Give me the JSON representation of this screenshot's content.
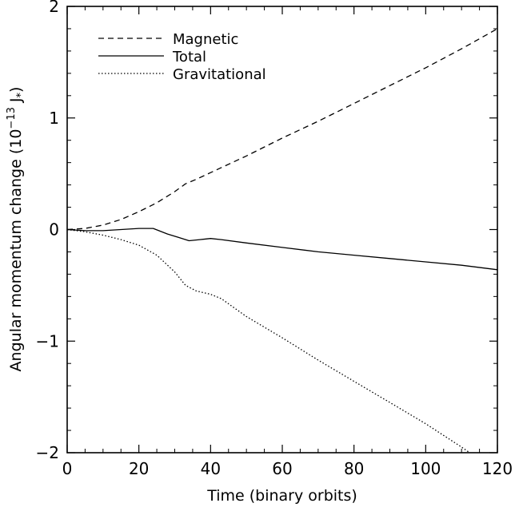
{
  "chart_data": {
    "type": "line",
    "title": "",
    "xlabel": "Time (binary orbits)",
    "ylabel": {
      "main": "Angular momentum change (10",
      "exponent": "−13",
      "unit_base": " J",
      "unit_subscript": "*",
      "close": ")"
    },
    "xlim": [
      0,
      120
    ],
    "ylim": [
      -2,
      2
    ],
    "x_ticks": [
      0,
      20,
      40,
      60,
      80,
      100,
      120
    ],
    "x_tick_labels": [
      "0",
      "20",
      "40",
      "60",
      "80",
      "100",
      "120"
    ],
    "y_ticks": [
      -2,
      -1,
      0,
      1,
      2
    ],
    "y_tick_labels": [
      "−2",
      "−1",
      "0",
      "1",
      "2"
    ],
    "grid": false,
    "legend_position": "top-left",
    "series": [
      {
        "name": "Magnetic",
        "style": "dashed",
        "x": [
          0,
          5,
          10,
          15,
          20,
          25,
          30,
          33,
          36,
          40,
          50,
          60,
          70,
          80,
          90,
          100,
          110,
          120
        ],
        "y": [
          0,
          0.01,
          0.04,
          0.09,
          0.16,
          0.24,
          0.34,
          0.41,
          0.45,
          0.51,
          0.66,
          0.82,
          0.97,
          1.13,
          1.29,
          1.45,
          1.62,
          1.8
        ]
      },
      {
        "name": "Total",
        "style": "solid",
        "x": [
          0,
          5,
          10,
          15,
          20,
          24,
          28,
          31,
          34,
          37,
          40,
          43,
          50,
          60,
          70,
          80,
          90,
          100,
          110,
          120
        ],
        "y": [
          0,
          -0.01,
          -0.01,
          0.0,
          0.01,
          0.01,
          -0.04,
          -0.07,
          -0.1,
          -0.09,
          -0.08,
          -0.09,
          -0.12,
          -0.16,
          -0.2,
          -0.23,
          -0.26,
          -0.29,
          -0.32,
          -0.36
        ]
      },
      {
        "name": "Gravitational",
        "style": "dotted",
        "x": [
          0,
          5,
          10,
          15,
          20,
          25,
          30,
          33,
          36,
          40,
          43,
          50,
          60,
          70,
          80,
          90,
          100,
          110,
          120
        ],
        "y": [
          0,
          -0.02,
          -0.05,
          -0.09,
          -0.14,
          -0.23,
          -0.38,
          -0.5,
          -0.55,
          -0.58,
          -0.62,
          -0.78,
          -0.97,
          -1.17,
          -1.36,
          -1.55,
          -1.74,
          -1.95,
          -2.17
        ]
      }
    ]
  }
}
